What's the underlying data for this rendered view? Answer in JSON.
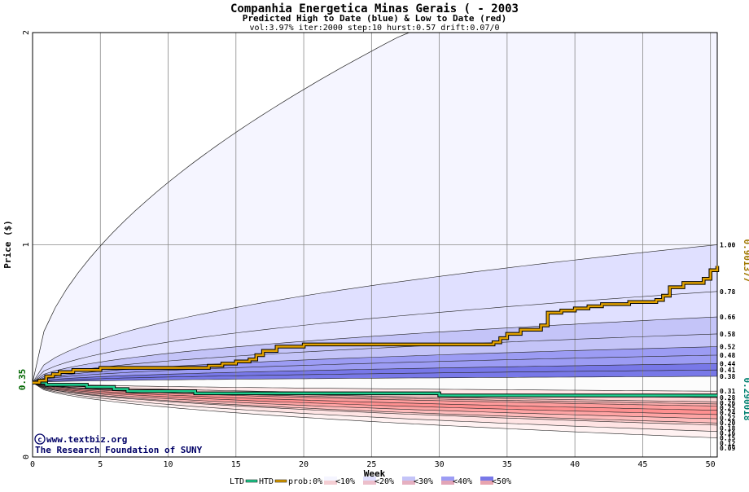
{
  "chart_data": {
    "type": "area",
    "title": "Companhia Energetica Minas Gerais ( - 2003",
    "subtitle": "Predicted High to Date (blue) &  Low to Date (red)",
    "params": "vol:3.97% iter:2000 step:10 hurst:0.57 drift:0.07/0",
    "xlabel": "Week",
    "ylabel": "Price ($)",
    "xlim": [
      0,
      50.5
    ],
    "ylim": [
      0,
      2
    ],
    "x_ticks": [
      0,
      5,
      10,
      15,
      20,
      25,
      30,
      35,
      40,
      45,
      50
    ],
    "y_ticks": [
      0,
      1,
      2
    ],
    "start_price": 0.35,
    "start_label": "0.35",
    "grid": true,
    "high_percentile_labels": [
      "1.00",
      "0.78",
      "0.66",
      "0.58",
      "0.52",
      "0.48",
      "0.44",
      "0.41",
      "0.38"
    ],
    "high_percentile_values": [
      1.0,
      0.78,
      0.66,
      0.58,
      0.52,
      0.48,
      0.44,
      0.41,
      0.38
    ],
    "low_percentile_labels": [
      "0.31",
      "0.28",
      "0.26",
      "0.25",
      "0.24",
      "0.22",
      "0.20",
      "0.18",
      "0.16",
      "0.15",
      "0.12",
      "0.09"
    ],
    "low_percentile_values": [
      0.31,
      0.28,
      0.26,
      0.25,
      0.24,
      0.22,
      0.2,
      0.18,
      0.16,
      0.15,
      0.12,
      0.09
    ],
    "hlabel": "0.901377",
    "llabel": "0.290018",
    "htd_series": {
      "name": "HTD",
      "color": "#e0a000",
      "x": [
        0,
        0.5,
        1,
        1.5,
        2,
        3,
        4,
        5,
        6,
        7,
        8,
        9,
        10,
        11,
        12,
        13,
        14,
        15,
        16,
        16.5,
        17,
        18,
        19,
        20,
        21,
        22,
        23,
        24,
        25,
        26,
        27,
        28,
        29,
        30,
        31,
        32,
        33,
        34,
        34.5,
        35,
        36,
        37,
        37.5,
        38,
        39,
        40,
        41,
        42,
        43,
        44,
        45,
        46,
        46.5,
        47,
        48,
        49,
        49.5,
        50,
        50.5
      ],
      "y": [
        0.35,
        0.36,
        0.38,
        0.39,
        0.4,
        0.41,
        0.41,
        0.42,
        0.42,
        0.42,
        0.42,
        0.42,
        0.42,
        0.42,
        0.42,
        0.43,
        0.44,
        0.45,
        0.46,
        0.48,
        0.5,
        0.52,
        0.52,
        0.53,
        0.53,
        0.53,
        0.53,
        0.53,
        0.53,
        0.53,
        0.53,
        0.53,
        0.53,
        0.53,
        0.53,
        0.53,
        0.53,
        0.54,
        0.56,
        0.58,
        0.6,
        0.6,
        0.62,
        0.68,
        0.69,
        0.7,
        0.71,
        0.72,
        0.72,
        0.73,
        0.73,
        0.74,
        0.76,
        0.8,
        0.82,
        0.82,
        0.84,
        0.88,
        0.9
      ]
    },
    "ltd_series": {
      "name": "LTD",
      "color": "#20d090",
      "x": [
        0,
        1,
        2,
        3,
        4,
        5,
        6,
        7,
        8,
        10,
        12,
        15,
        20,
        25,
        30,
        35,
        40,
        45,
        50,
        50.5
      ],
      "y": [
        0.35,
        0.34,
        0.34,
        0.34,
        0.33,
        0.33,
        0.32,
        0.31,
        0.31,
        0.31,
        0.3,
        0.3,
        0.3,
        0.3,
        0.29,
        0.29,
        0.29,
        0.29,
        0.29,
        0.29
      ]
    },
    "legend": {
      "ltd": "LTD",
      "htd": "HTD",
      "prob": "prob:0%",
      "items": [
        "<10%",
        "<20%",
        "<30%",
        "<40%",
        "<50%"
      ],
      "colors": [
        "#f5f5ff",
        "#e0e0ff",
        "#c4c4f8",
        "#9c9cf4",
        "#7878e8"
      ]
    }
  },
  "credits": {
    "site": "www.textbiz.org",
    "org": "The Research Foundation of SUNY",
    "copyright_symbol": "©"
  }
}
